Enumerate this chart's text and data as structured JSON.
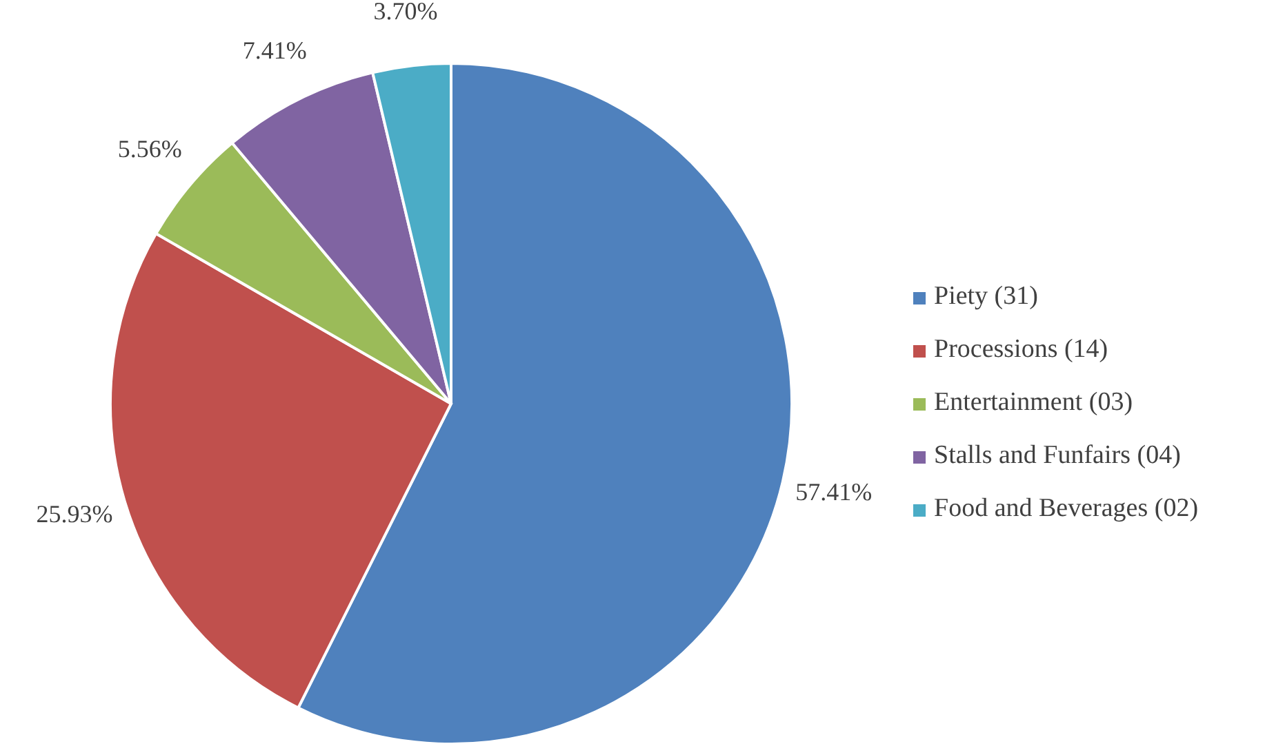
{
  "chart_data": {
    "type": "pie",
    "categories": [
      "Piety (31)",
      "Processions (14)",
      "Entertainment (03)",
      "Stalls and Funfairs (04)",
      "Food and Beverages (02)"
    ],
    "values": [
      57.41,
      25.93,
      5.56,
      7.41,
      3.7
    ],
    "value_labels": [
      "57.41%",
      "25.93%",
      "5.56%",
      "7.41%",
      "3.70%"
    ],
    "colors": [
      "#4f81bd",
      "#c0504d",
      "#9bbb59",
      "#8064a2",
      "#4bacc6"
    ],
    "legend": "right"
  }
}
